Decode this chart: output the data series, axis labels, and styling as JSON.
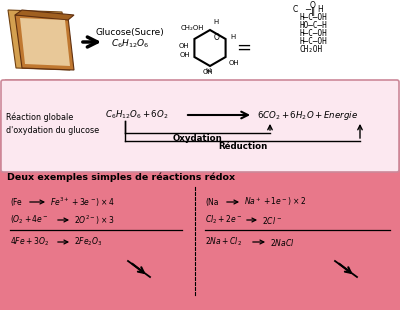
{
  "bg_color": "#ffffff",
  "pink_bg": "#e8788a",
  "light_pink_box_bg": "#fce8f0",
  "box_border": "#cc8899",
  "reaction_label": "Réaction globale\nd'oxydation du glucose",
  "oxydation": "Oxydation",
  "reduction": "Réduction",
  "redox_title": "Deux exemples simples de réactions rédox",
  "bread_colors": [
    "#c8924a",
    "#b07830",
    "#d4a870",
    "#e8c898"
  ],
  "ring_color": "#000000",
  "arrow_color": "#000000"
}
